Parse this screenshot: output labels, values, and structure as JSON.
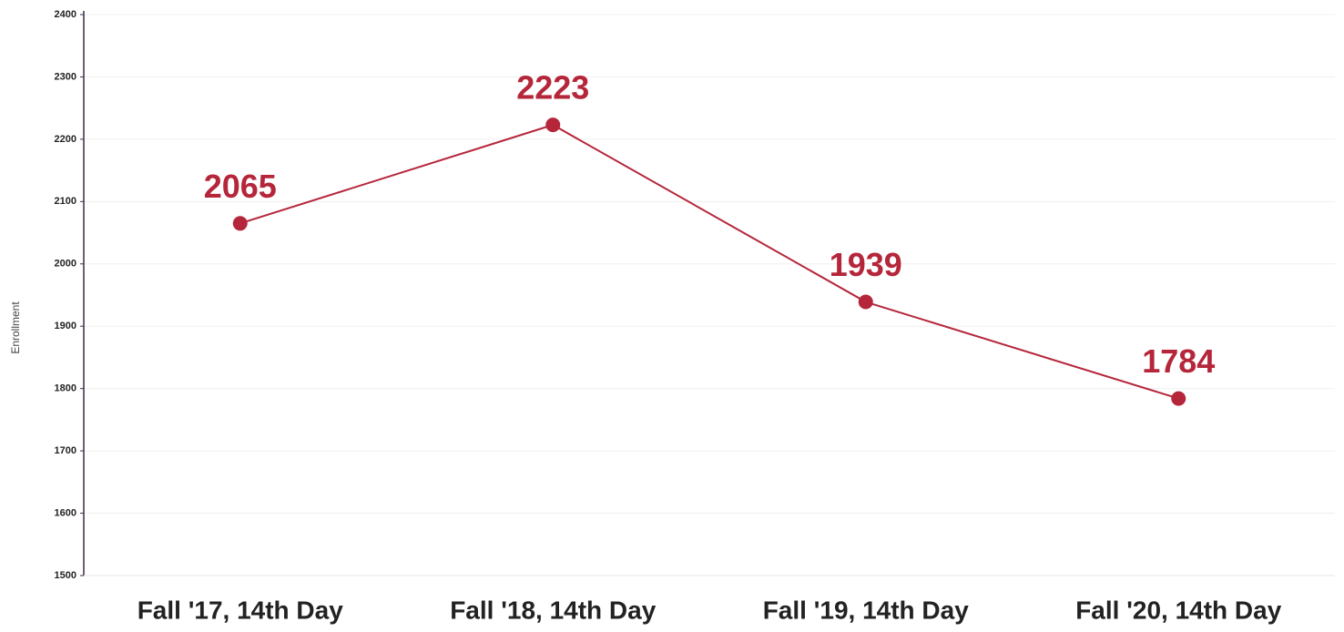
{
  "chart_data": {
    "type": "line",
    "y_label": "Enrollment",
    "categories": [
      "Fall '17, 14th Day",
      "Fall '18, 14th Day",
      "Fall '19, 14th Day",
      "Fall '20, 14th Day"
    ],
    "series": [
      {
        "name": "Enrollment",
        "color": "#b5263a",
        "values": [
          2065,
          2223,
          1939,
          1784
        ]
      }
    ],
    "ylim": [
      1500,
      2400
    ],
    "yticks": [
      1500,
      1600,
      1700,
      1800,
      1900,
      2000,
      2100,
      2200,
      2300,
      2400
    ],
    "grid": true
  }
}
